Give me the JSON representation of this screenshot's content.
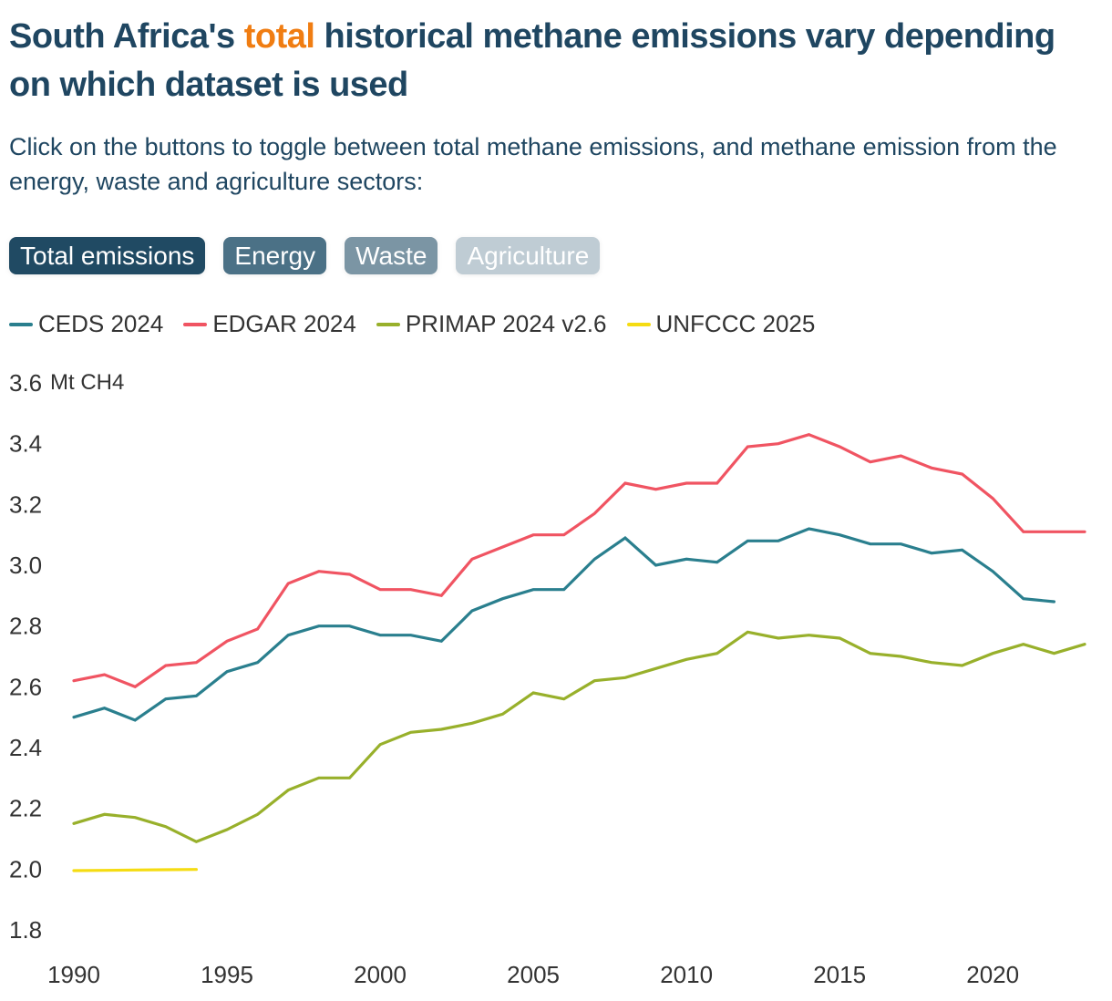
{
  "header": {
    "title_pre": "South Africa's ",
    "title_highlight": "total",
    "title_post": " historical methane emissions vary depending on which dataset is used",
    "subtitle": "Click on the buttons to toggle between total methane emissions, and methane emission from the energy, waste and agriculture sectors:",
    "highlight_color": "#f07d12"
  },
  "buttons": [
    {
      "label": "Total emissions",
      "color": "#204a63",
      "active": true
    },
    {
      "label": "Energy",
      "color": "#4b7186",
      "active": false
    },
    {
      "label": "Waste",
      "color": "#7b95a4",
      "active": false
    },
    {
      "label": "Agriculture",
      "color": "#bfccd4",
      "active": false
    }
  ],
  "chart_data": {
    "type": "line",
    "title": "South Africa's total historical methane emissions vary depending on which dataset is used",
    "xlabel": "",
    "ylabel": "Mt CH4",
    "xlim": [
      1990,
      2023
    ],
    "ylim": [
      1.8,
      3.6
    ],
    "x_ticks": [
      1990,
      1995,
      2000,
      2005,
      2010,
      2015,
      2020
    ],
    "y_ticks": [
      "1.8",
      "2.0",
      "2.2",
      "2.4",
      "2.6",
      "2.8",
      "3.0",
      "3.2",
      "3.4",
      "3.6"
    ],
    "y_unit_label": "Mt CH4",
    "grid": false,
    "legend_position": "top-left",
    "series": [
      {
        "name": "CEDS 2024",
        "color": "#2a7f8e",
        "start_year": 1990,
        "values": [
          2.5,
          2.53,
          2.49,
          2.56,
          2.57,
          2.65,
          2.68,
          2.77,
          2.8,
          2.8,
          2.77,
          2.77,
          2.75,
          2.85,
          2.89,
          2.92,
          2.92,
          3.02,
          3.09,
          3.0,
          3.02,
          3.01,
          3.08,
          3.08,
          3.12,
          3.1,
          3.07,
          3.07,
          3.04,
          3.05,
          2.98,
          2.89,
          2.88
        ]
      },
      {
        "name": "EDGAR 2024",
        "color": "#f05462",
        "start_year": 1990,
        "values": [
          2.62,
          2.64,
          2.6,
          2.67,
          2.68,
          2.75,
          2.79,
          2.94,
          2.98,
          2.97,
          2.92,
          2.92,
          2.9,
          3.02,
          3.06,
          3.1,
          3.1,
          3.17,
          3.27,
          3.25,
          3.27,
          3.27,
          3.39,
          3.4,
          3.43,
          3.39,
          3.34,
          3.36,
          3.32,
          3.3,
          3.22,
          3.11,
          3.11,
          3.11
        ]
      },
      {
        "name": "PRIMAP 2024 v2.6",
        "color": "#98b02b",
        "start_year": 1990,
        "values": [
          2.15,
          2.18,
          2.17,
          2.14,
          2.09,
          2.13,
          2.18,
          2.26,
          2.3,
          2.3,
          2.41,
          2.45,
          2.46,
          2.48,
          2.51,
          2.58,
          2.56,
          2.62,
          2.63,
          2.66,
          2.69,
          2.71,
          2.78,
          2.76,
          2.77,
          2.76,
          2.71,
          2.7,
          2.68,
          2.67,
          2.71,
          2.74,
          2.71,
          2.74
        ]
      },
      {
        "name": "UNFCCC 2025",
        "color": "#f5dc12",
        "start_year": 1990,
        "values": [
          1.995,
          1.996,
          1.997,
          1.998,
          1.999
        ]
      }
    ]
  }
}
